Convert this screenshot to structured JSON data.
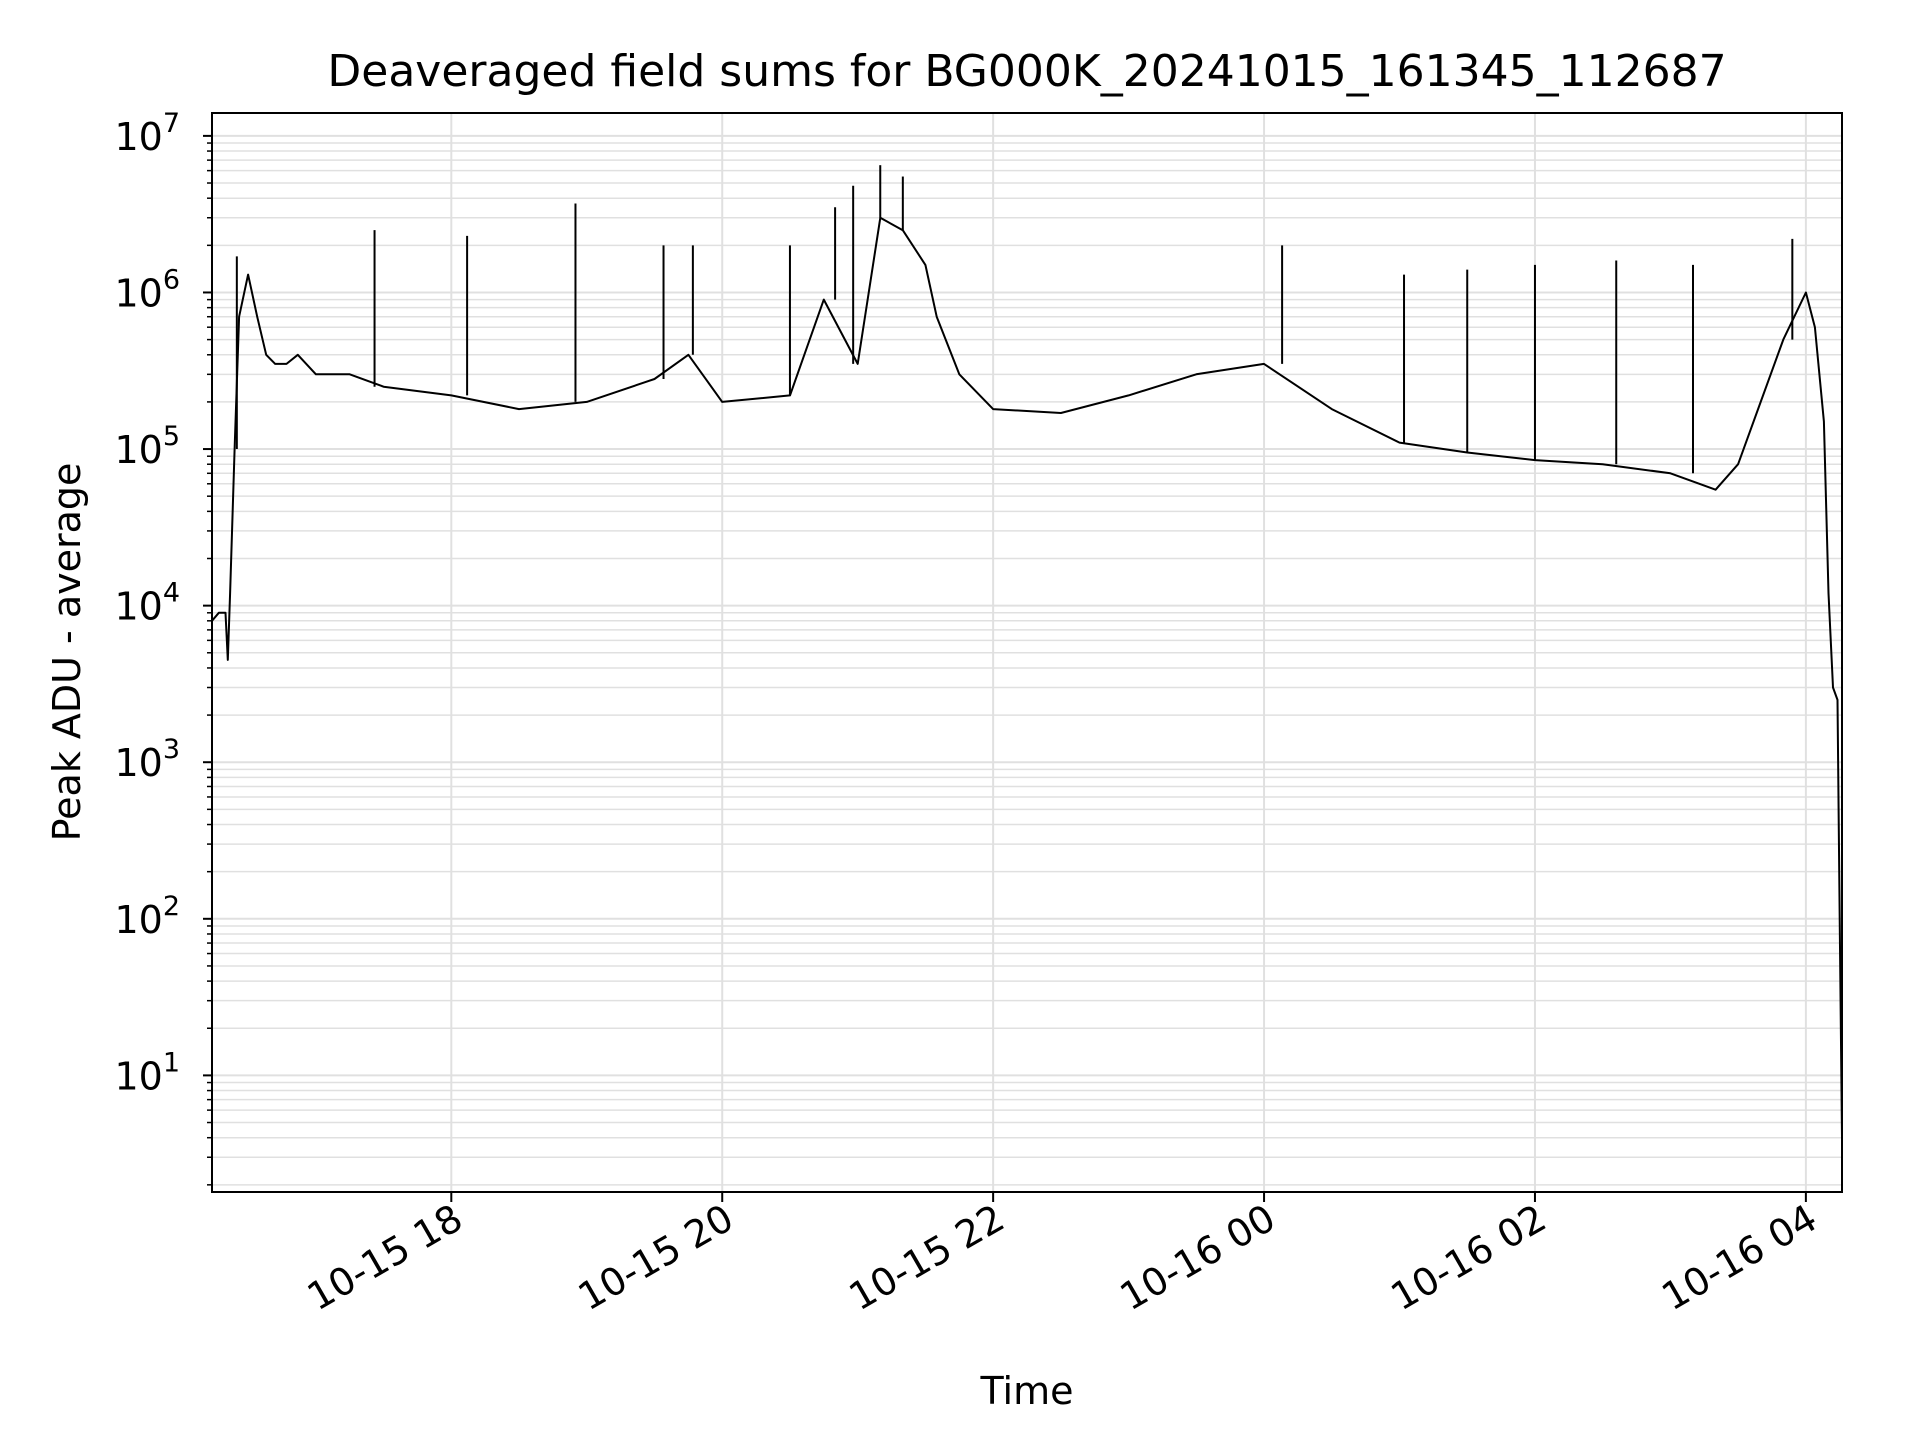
{
  "chart_data": {
    "type": "line",
    "title": "Deaveraged field sums for BG000K_20241015_161345_112687",
    "xlabel": "Time",
    "ylabel": "Peak ADU - average",
    "yscale": "log",
    "ylim": [
      1.8,
      14000000
    ],
    "xlim": [
      "2024-10-15 16:14",
      "2024-10-16 04:16"
    ],
    "grid": true,
    "legend": "none",
    "line_color": "#000000",
    "grid_color": "#e0e0e0",
    "x_ticks": [
      {
        "value": "2024-10-15 18:00",
        "label": "10-15 18"
      },
      {
        "value": "2024-10-15 20:00",
        "label": "10-15 20"
      },
      {
        "value": "2024-10-15 22:00",
        "label": "10-15 22"
      },
      {
        "value": "2024-10-16 00:00",
        "label": "10-16 00"
      },
      {
        "value": "2024-10-16 02:00",
        "label": "10-16 02"
      },
      {
        "value": "2024-10-16 04:00",
        "label": "10-16 04"
      }
    ],
    "y_ticks": [
      {
        "value": 10,
        "base": "10",
        "exp": "1"
      },
      {
        "value": 100,
        "base": "10",
        "exp": "2"
      },
      {
        "value": 1000,
        "base": "10",
        "exp": "3"
      },
      {
        "value": 10000,
        "base": "10",
        "exp": "4"
      },
      {
        "value": 100000,
        "base": "10",
        "exp": "5"
      },
      {
        "value": 1000000,
        "base": "10",
        "exp": "6"
      },
      {
        "value": 10000000,
        "base": "10",
        "exp": "7"
      }
    ],
    "series": [
      {
        "x": [
          "2024-10-15 16:14",
          "2024-10-15 16:17",
          "2024-10-15 16:20",
          "2024-10-15 16:21",
          "2024-10-15 16:22",
          "2024-10-15 16:24",
          "2024-10-15 16:26",
          "2024-10-15 16:30",
          "2024-10-15 16:34",
          "2024-10-15 16:38",
          "2024-10-15 16:42",
          "2024-10-15 16:47",
          "2024-10-15 16:52",
          "2024-10-15 17:00",
          "2024-10-15 17:15",
          "2024-10-15 17:30",
          "2024-10-15 18:00",
          "2024-10-15 18:30",
          "2024-10-15 19:00",
          "2024-10-15 19:30",
          "2024-10-15 19:45",
          "2024-10-15 20:00",
          "2024-10-15 20:30",
          "2024-10-15 20:45",
          "2024-10-15 21:00",
          "2024-10-15 21:10",
          "2024-10-15 21:20",
          "2024-10-15 21:30",
          "2024-10-15 21:35",
          "2024-10-15 21:45",
          "2024-10-15 22:00",
          "2024-10-15 22:30",
          "2024-10-15 23:00",
          "2024-10-15 23:30",
          "2024-10-16 00:00",
          "2024-10-16 00:30",
          "2024-10-16 01:00",
          "2024-10-16 01:30",
          "2024-10-16 02:00",
          "2024-10-16 02:30",
          "2024-10-16 03:00",
          "2024-10-16 03:20",
          "2024-10-16 03:30",
          "2024-10-16 03:40",
          "2024-10-16 03:50",
          "2024-10-16 04:00",
          "2024-10-16 04:04",
          "2024-10-16 04:08",
          "2024-10-16 04:10",
          "2024-10-16 04:12",
          "2024-10-16 04:14",
          "2024-10-16 04:15",
          "2024-10-16 04:16"
        ],
        "y": [
          8000,
          9000,
          9000,
          4500,
          12000,
          100000,
          700000,
          1300000,
          700000,
          400000,
          350000,
          350000,
          400000,
          300000,
          300000,
          250000,
          220000,
          180000,
          200000,
          280000,
          400000,
          200000,
          220000,
          900000,
          350000,
          3000000,
          2500000,
          1500000,
          700000,
          300000,
          180000,
          170000,
          220000,
          300000,
          350000,
          180000,
          110000,
          95000,
          85000,
          80000,
          70000,
          55000,
          80000,
          200000,
          500000,
          1000000,
          600000,
          150000,
          12000,
          3000,
          2500,
          100,
          4
        ]
      }
    ],
    "spikes": [
      {
        "x": "2024-10-15 16:25",
        "y": 1700000
      },
      {
        "x": "2024-10-15 17:26",
        "y": 2500000
      },
      {
        "x": "2024-10-15 18:07",
        "y": 2300000
      },
      {
        "x": "2024-10-15 18:55",
        "y": 3700000
      },
      {
        "x": "2024-10-15 19:34",
        "y": 2000000
      },
      {
        "x": "2024-10-15 19:47",
        "y": 2000000
      },
      {
        "x": "2024-10-15 20:30",
        "y": 2000000
      },
      {
        "x": "2024-10-15 20:50",
        "y": 3500000
      },
      {
        "x": "2024-10-15 20:58",
        "y": 4800000
      },
      {
        "x": "2024-10-15 21:10",
        "y": 6500000
      },
      {
        "x": "2024-10-15 21:20",
        "y": 5500000
      },
      {
        "x": "2024-10-16 00:08",
        "y": 2000000
      },
      {
        "x": "2024-10-16 01:02",
        "y": 1300000
      },
      {
        "x": "2024-10-16 01:30",
        "y": 1400000
      },
      {
        "x": "2024-10-16 02:00",
        "y": 1500000
      },
      {
        "x": "2024-10-16 02:36",
        "y": 1600000
      },
      {
        "x": "2024-10-16 03:10",
        "y": 1500000
      },
      {
        "x": "2024-10-16 03:54",
        "y": 2200000
      }
    ]
  }
}
